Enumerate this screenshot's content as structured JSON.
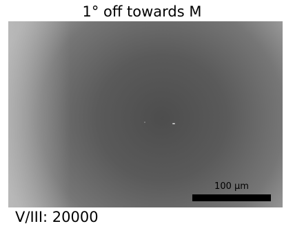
{
  "title": "1° off towards M",
  "scale_bar": {
    "label": "100 µm"
  },
  "footer_label": "V/III: 20000"
}
